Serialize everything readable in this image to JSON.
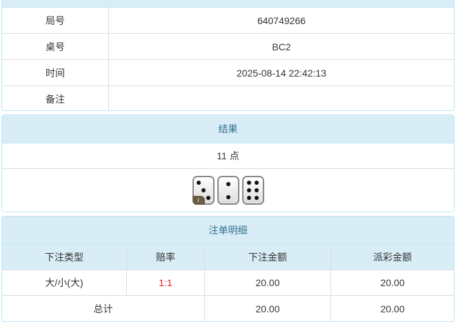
{
  "info": {
    "rows": [
      {
        "label": "局号",
        "value": "640749266"
      },
      {
        "label": "桌号",
        "value": "BC2"
      },
      {
        "label": "时间",
        "value": "2025-08-14 22:42:13"
      },
      {
        "label": "备注",
        "value": ""
      }
    ]
  },
  "result": {
    "title": "结果",
    "points": "11 点",
    "dice": [
      3,
      2,
      6
    ],
    "info_badge": "i"
  },
  "bets": {
    "title": "注单明细",
    "headers": [
      "下注类型",
      "赔率",
      "下注金额",
      "派彩金额"
    ],
    "rows": [
      {
        "type": "大/小(大)",
        "odds": "1:1",
        "amount": "20.00",
        "payout": "20.00"
      }
    ],
    "total": {
      "label": "总计",
      "amount": "20.00",
      "payout": "20.00"
    },
    "odds_color": "#e02020"
  }
}
